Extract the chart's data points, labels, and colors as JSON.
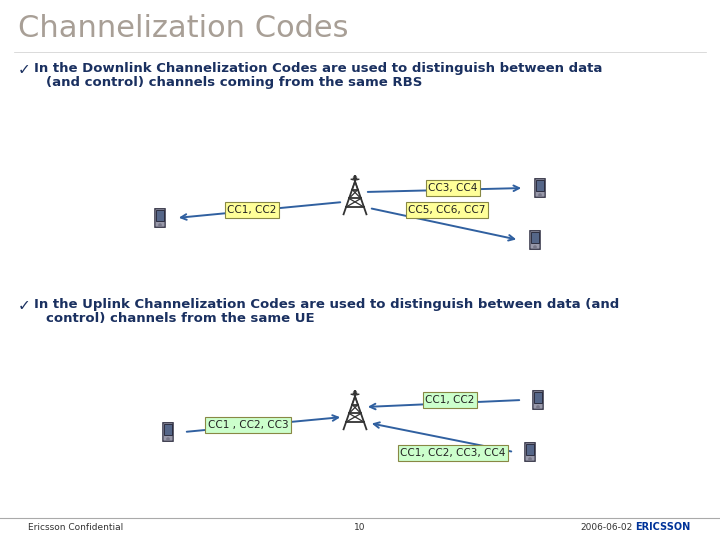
{
  "title": "Channelization Codes",
  "title_color": "#A89F96",
  "slide_bg": "#FFFFFF",
  "bullet1_line1": "In the Downlink Channelization Codes are used to distinguish between data",
  "bullet1_line2": "(and control) channels coming from the same RBS",
  "bullet2_line1": "In the Uplink Channelization Codes are used to distinguish between data (and",
  "bullet2_line2": "control) channels from the same UE",
  "dl_label1": "CC1, CC2",
  "dl_label2": "CC3, CC4",
  "dl_label3": "CC5, CC6, CC7",
  "ul_label1": "CC1 , CC2, CC3",
  "ul_label2": "CC1, CC2",
  "ul_label3": "CC1, CC2, CC3, CC4",
  "dl_box_color": "#FFFF99",
  "ul_box_color": "#CCFFCC",
  "body_text_color": "#1a3060",
  "footer_left": "Ericsson Confidential",
  "footer_page": "10",
  "footer_right": "2006-06-02",
  "footer_brand": "ERICSSON",
  "arrow_color": "#3060A0",
  "tower_color": "#333333",
  "phone_body": "#9999AA",
  "phone_screen": "#556688",
  "footer_color": "#333333",
  "footer_brand_color": "#003399",
  "separator_color": "#AAAAAA"
}
